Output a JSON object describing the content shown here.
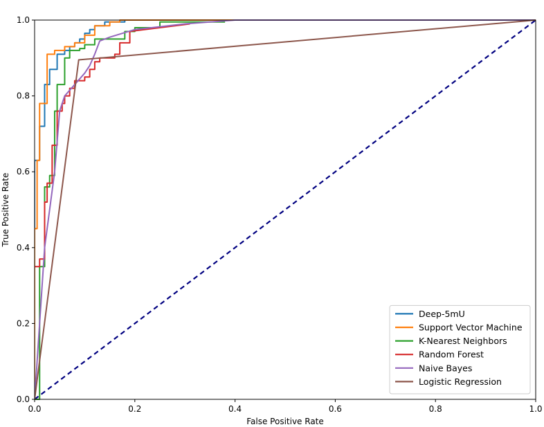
{
  "chart_data": {
    "type": "line",
    "title": "",
    "xlabel": "False Positive Rate",
    "ylabel": "True Positive Rate",
    "xlim": [
      0.0,
      1.0
    ],
    "ylim": [
      0.0,
      1.0
    ],
    "xticks": [
      "0.0",
      "0.2",
      "0.4",
      "0.6",
      "0.8",
      "1.0"
    ],
    "yticks": [
      "0.0",
      "0.2",
      "0.4",
      "0.6",
      "0.8",
      "1.0"
    ],
    "grid": false,
    "legend_position": "lower-right",
    "series": [
      {
        "name": "Deep-5mU",
        "color": "#1f77b4",
        "x": [
          0.0,
          0.0,
          0.01,
          0.01,
          0.02,
          0.02,
          0.03,
          0.03,
          0.045,
          0.045,
          0.06,
          0.06,
          0.07,
          0.07,
          0.08,
          0.08,
          0.09,
          0.09,
          0.1,
          0.1,
          0.11,
          0.11,
          0.12,
          0.12,
          0.14,
          0.14,
          0.18,
          0.18,
          0.3,
          1.0
        ],
        "y": [
          0.0,
          0.63,
          0.63,
          0.72,
          0.72,
          0.83,
          0.83,
          0.87,
          0.87,
          0.91,
          0.91,
          0.92,
          0.92,
          0.93,
          0.93,
          0.94,
          0.94,
          0.95,
          0.95,
          0.965,
          0.965,
          0.975,
          0.975,
          0.985,
          0.985,
          0.995,
          0.995,
          1.0,
          1.0,
          1.0
        ]
      },
      {
        "name": "Support Vector Machine",
        "color": "#ff7f0e",
        "x": [
          0.0,
          0.0,
          0.005,
          0.005,
          0.01,
          0.01,
          0.025,
          0.025,
          0.04,
          0.04,
          0.06,
          0.06,
          0.08,
          0.08,
          0.1,
          0.1,
          0.12,
          0.12,
          0.15,
          0.15,
          0.17,
          0.17,
          0.33,
          1.0
        ],
        "y": [
          0.0,
          0.45,
          0.45,
          0.63,
          0.63,
          0.78,
          0.78,
          0.91,
          0.91,
          0.92,
          0.92,
          0.93,
          0.93,
          0.94,
          0.94,
          0.96,
          0.96,
          0.985,
          0.985,
          0.995,
          0.995,
          1.0,
          1.0,
          1.0
        ]
      },
      {
        "name": "K-Nearest Neighbors",
        "color": "#2ca02c",
        "x": [
          0.0,
          0.01,
          0.01,
          0.02,
          0.02,
          0.03,
          0.03,
          0.04,
          0.04,
          0.045,
          0.045,
          0.06,
          0.06,
          0.07,
          0.07,
          0.09,
          0.09,
          0.1,
          0.1,
          0.12,
          0.12,
          0.18,
          0.18,
          0.2,
          0.2,
          0.25,
          0.25,
          0.38
        ],
        "y": [
          0.0,
          0.0,
          0.35,
          0.35,
          0.56,
          0.56,
          0.59,
          0.59,
          0.76,
          0.76,
          0.83,
          0.83,
          0.9,
          0.9,
          0.92,
          0.92,
          0.925,
          0.925,
          0.935,
          0.935,
          0.95,
          0.95,
          0.97,
          0.97,
          0.98,
          0.98,
          0.995,
          0.995
        ]
      },
      {
        "name": "Random Forest",
        "color": "#d62728",
        "x": [
          0.0,
          0.01,
          0.01,
          0.02,
          0.02,
          0.025,
          0.025,
          0.035,
          0.035,
          0.045,
          0.045,
          0.055,
          0.055,
          0.06,
          0.06,
          0.07,
          0.07,
          0.08,
          0.08,
          0.1,
          0.1,
          0.11,
          0.11,
          0.12,
          0.12,
          0.13,
          0.13,
          0.16,
          0.16,
          0.17,
          0.17,
          0.19,
          0.19,
          0.31
        ],
        "y": [
          0.35,
          0.35,
          0.37,
          0.37,
          0.52,
          0.52,
          0.57,
          0.57,
          0.67,
          0.67,
          0.76,
          0.76,
          0.78,
          0.78,
          0.8,
          0.8,
          0.82,
          0.82,
          0.84,
          0.84,
          0.85,
          0.85,
          0.87,
          0.87,
          0.89,
          0.89,
          0.9,
          0.9,
          0.91,
          0.91,
          0.94,
          0.94,
          0.97,
          0.99
        ]
      },
      {
        "name": "Naive Bayes",
        "color": "#9467bd",
        "x": [
          0.0,
          0.02,
          0.04,
          0.05,
          0.06,
          0.08,
          0.1,
          0.11,
          0.12,
          0.13,
          0.15,
          0.2,
          0.3,
          0.4,
          1.0
        ],
        "y": [
          0.0,
          0.4,
          0.6,
          0.76,
          0.8,
          0.83,
          0.86,
          0.88,
          0.91,
          0.945,
          0.955,
          0.975,
          0.99,
          1.0,
          1.0
        ]
      },
      {
        "name": "Logistic Regression",
        "color": "#8c564b",
        "x": [
          0.0,
          0.088,
          1.0
        ],
        "y": [
          0.0,
          0.895,
          1.0
        ]
      }
    ],
    "reference_line": {
      "name": "chance",
      "color": "#000080",
      "style": "dashed",
      "x": [
        0.0,
        1.0
      ],
      "y": [
        0.0,
        1.0
      ]
    }
  }
}
